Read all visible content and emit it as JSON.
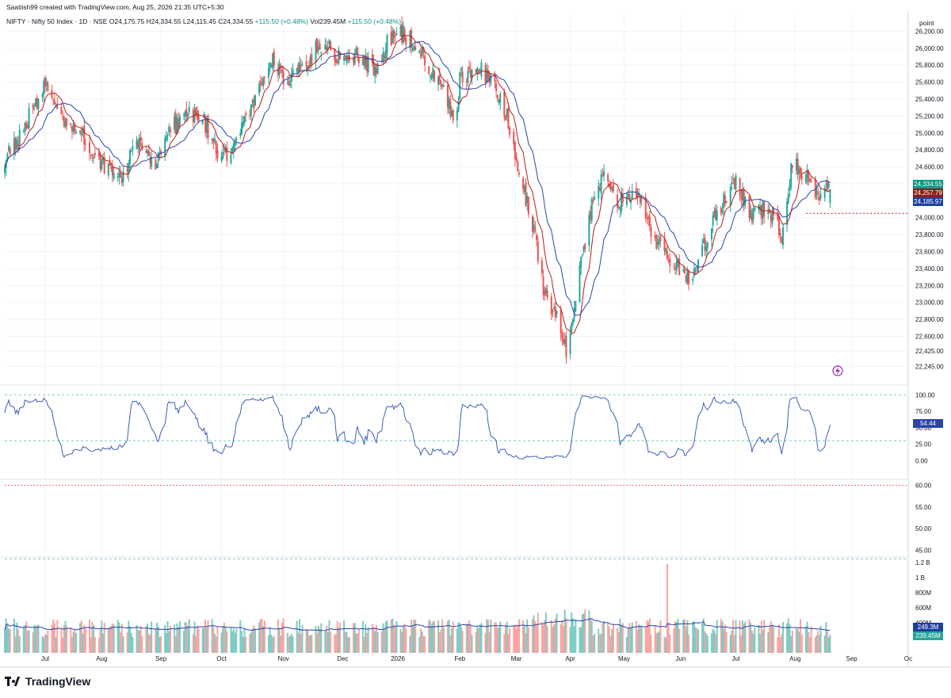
{
  "header": {
    "credit": "Saatiish99 created with TradingView.com, Aug 25, 2026 21:35 UTC+5:30",
    "symbol": "NIFTY · Nifty 50 Index · 1D · NSE",
    "open": "O24,175.75",
    "high": "H24,334.55",
    "low": "L24,115.45",
    "close": "C24,334.55",
    "change": "+115.50 (+0.48%)",
    "volume": "Vol239.45M",
    "volume_change": "+115.50 (+0.48%)"
  },
  "axis_title": "point",
  "price_badges": {
    "last": "24,334.55",
    "ma_fast": "24,257.79",
    "ma_slow": "24,185.97"
  },
  "osc_badge": "54.44",
  "volume_badges": {
    "ma": "249.3M",
    "last": "239.45M"
  },
  "branding": "TradingView",
  "colors": {
    "up": "#26a69a",
    "down": "#ef5350",
    "ma_fast": "#b71c1c",
    "ma_slow": "#2a45a8",
    "oscillator": "#3d5fb5",
    "grid": "#f0f3fa"
  },
  "chart_data": [
    {
      "type": "candlestick",
      "ylim": [
        22100,
        26400
      ],
      "y_ticks": [
        "26,200.00",
        "26,000.00",
        "25,800.00",
        "25,600.00",
        "25,400.00",
        "25,200.00",
        "25,000.00",
        "24,800.00",
        "24,600.00",
        "24,400.00",
        "24,000.00",
        "23,800.00",
        "23,600.00",
        "23,400.00",
        "23,200.00",
        "23,000.00",
        "22,800.00",
        "22,600.00",
        "22,425.00",
        "22,245.00"
      ],
      "x_ticks": [
        "Jul",
        "Aug",
        "Sep",
        "Oct",
        "Nov",
        "Dec",
        "2026",
        "Feb",
        "Mar",
        "Apr",
        "May",
        "Jun",
        "Jul",
        "Aug",
        "Sep",
        "Oc"
      ],
      "x_tick_days": [
        30,
        72,
        116,
        161,
        207,
        251,
        292,
        338,
        380,
        420,
        460,
        502,
        543,
        587,
        629,
        671
      ],
      "last_day": 613,
      "anchors": [
        [
          0,
          24700
        ],
        [
          12,
          25000
        ],
        [
          30,
          25550
        ],
        [
          45,
          25150
        ],
        [
          58,
          24950
        ],
        [
          72,
          24650
        ],
        [
          85,
          24450
        ],
        [
          100,
          24900
        ],
        [
          112,
          24650
        ],
        [
          123,
          25050
        ],
        [
          136,
          25250
        ],
        [
          148,
          25150
        ],
        [
          161,
          24650
        ],
        [
          173,
          24950
        ],
        [
          185,
          25350
        ],
        [
          197,
          25900
        ],
        [
          210,
          25600
        ],
        [
          222,
          25800
        ],
        [
          238,
          26100
        ],
        [
          250,
          25850
        ],
        [
          262,
          25950
        ],
        [
          276,
          25700
        ],
        [
          285,
          26100
        ],
        [
          292,
          26200
        ],
        [
          305,
          26050
        ],
        [
          315,
          25800
        ],
        [
          325,
          25550
        ],
        [
          335,
          25150
        ],
        [
          338,
          25650
        ],
        [
          352,
          25800
        ],
        [
          363,
          25550
        ],
        [
          372,
          25250
        ],
        [
          380,
          24700
        ],
        [
          392,
          23900
        ],
        [
          401,
          23100
        ],
        [
          410,
          22850
        ],
        [
          418,
          22400
        ],
        [
          425,
          23200
        ],
        [
          437,
          24250
        ],
        [
          447,
          24550
        ],
        [
          455,
          24150
        ],
        [
          468,
          24350
        ],
        [
          479,
          23900
        ],
        [
          488,
          23600
        ],
        [
          500,
          23450
        ],
        [
          510,
          23200
        ],
        [
          520,
          23700
        ],
        [
          530,
          24100
        ],
        [
          543,
          24400
        ],
        [
          556,
          24000
        ],
        [
          566,
          24150
        ],
        [
          577,
          23800
        ],
        [
          585,
          24650
        ],
        [
          596,
          24500
        ],
        [
          604,
          24200
        ],
        [
          613,
          24334
        ]
      ],
      "moving_averages": [
        {
          "period": 9
        },
        {
          "period": 20
        }
      ]
    },
    {
      "type": "line",
      "ylim": [
        -25,
        110
      ],
      "y_ticks": [
        "100.00",
        "75.00",
        "50.00",
        "25.00",
        "0.00"
      ],
      "levels": [
        100,
        30
      ],
      "last_value": 54.44
    },
    {
      "type": "line",
      "ylim": [
        44,
        61
      ],
      "y_ticks": [
        "60.00",
        "55.00",
        "50.00",
        "45.00"
      ],
      "levels": [
        60,
        43
      ]
    },
    {
      "type": "bar",
      "ylim": [
        0,
        1250
      ],
      "y_ticks": [
        "1.2 B",
        "1 B",
        "800M",
        "600M",
        "400M"
      ],
      "unit": "M",
      "last_value": 239.45,
      "ma_value": 249.3,
      "spike_value": 1180
    }
  ]
}
